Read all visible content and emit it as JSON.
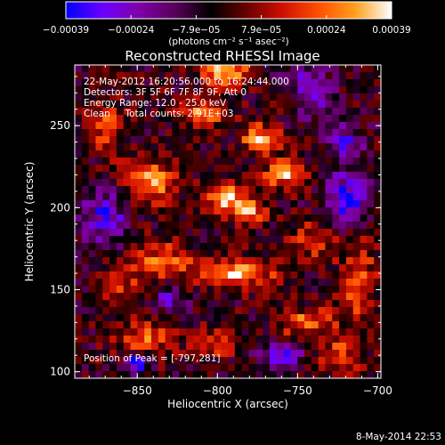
{
  "chart_data": {
    "type": "heatmap",
    "title": "Reconstructed RHESSI Image",
    "xlabel": "Heliocentric X (arcsec)",
    "ylabel": "Heliocentric Y (arcsec)",
    "xlim": [
      -889,
      -698
    ],
    "ylim": [
      96,
      287
    ],
    "x_ticks": [
      -850,
      -800,
      -750,
      -700
    ],
    "x_tick_labels": [
      "−850",
      "−800",
      "−750",
      "−700"
    ],
    "y_ticks": [
      100,
      150,
      200,
      250
    ],
    "y_tick_labels": [
      "100",
      "150",
      "200",
      "250"
    ],
    "colorbar": {
      "min": -0.00039,
      "max": 0.00039,
      "tick_labels": [
        "−0.00039",
        "−0.00024",
        "−7.9e−05",
        "7.9e−05",
        "0.00024",
        "0.00039"
      ],
      "unit_label": "(photons cm⁻² s⁻¹ asec⁻²)",
      "colors": [
        "#0000ff",
        "#6a00ff",
        "#8000aa",
        "#5a005a",
        "#000000",
        "#6a0000",
        "#d01000",
        "#ff5000",
        "#ffa020",
        "#ffffff"
      ]
    },
    "peak": [
      -797,
      281
    ],
    "sources": [
      {
        "x": -795,
        "y": 283,
        "sx": 10,
        "sy": 6,
        "a": 1.0
      },
      {
        "x": -773,
        "y": 242,
        "sx": 8,
        "sy": 6,
        "a": 0.95
      },
      {
        "x": -758,
        "y": 220,
        "sx": 9,
        "sy": 6,
        "a": 0.85
      },
      {
        "x": -808,
        "y": 258,
        "sx": 10,
        "sy": 6,
        "a": 0.75
      },
      {
        "x": -842,
        "y": 216,
        "sx": 12,
        "sy": 10,
        "a": 0.8
      },
      {
        "x": -795,
        "y": 206,
        "sx": 9,
        "sy": 6,
        "a": 0.85
      },
      {
        "x": -780,
        "y": 198,
        "sx": 8,
        "sy": 6,
        "a": 0.7
      },
      {
        "x": -790,
        "y": 160,
        "sx": 18,
        "sy": 6,
        "a": 0.9
      },
      {
        "x": -835,
        "y": 168,
        "sx": 14,
        "sy": 8,
        "a": 0.6
      },
      {
        "x": -845,
        "y": 120,
        "sx": 12,
        "sy": 8,
        "a": 0.6
      },
      {
        "x": -800,
        "y": 118,
        "sx": 10,
        "sy": 6,
        "a": 0.55
      },
      {
        "x": -745,
        "y": 130,
        "sx": 12,
        "sy": 6,
        "a": 0.7
      },
      {
        "x": -712,
        "y": 155,
        "sx": 8,
        "sy": 18,
        "a": 0.6
      },
      {
        "x": -725,
        "y": 110,
        "sx": 10,
        "sy": 8,
        "a": 0.55
      },
      {
        "x": -870,
        "y": 250,
        "sx": 8,
        "sy": 12,
        "a": 0.5
      },
      {
        "x": -860,
        "y": 150,
        "sx": 10,
        "sy": 10,
        "a": 0.45
      },
      {
        "x": -740,
        "y": 180,
        "sx": 10,
        "sy": 8,
        "a": 0.5
      },
      {
        "x": -755,
        "y": 265,
        "sx": 8,
        "sy": 6,
        "a": 0.45
      }
    ],
    "negative_sources": [
      {
        "x": -850,
        "y": 105,
        "sx": 5,
        "sy": 4,
        "a": 1.0
      },
      {
        "x": -718,
        "y": 205,
        "sx": 10,
        "sy": 12,
        "a": 0.8
      },
      {
        "x": -745,
        "y": 270,
        "sx": 10,
        "sy": 10,
        "a": 0.75
      },
      {
        "x": -870,
        "y": 195,
        "sx": 10,
        "sy": 12,
        "a": 0.7
      },
      {
        "x": -760,
        "y": 110,
        "sx": 10,
        "sy": 6,
        "a": 0.6
      },
      {
        "x": -720,
        "y": 240,
        "sx": 8,
        "sy": 8,
        "a": 0.6
      },
      {
        "x": -830,
        "y": 145,
        "sx": 8,
        "sy": 6,
        "a": 0.5
      }
    ]
  },
  "annotations": {
    "time_range": "22-May-2012 16:20:56.000 to 16:24:44.000",
    "detectors": "Detectors: 3F 5F 6F 7F 8F 9F, Att 0",
    "energy_range": "Energy Range: 12.0 - 25.0 keV",
    "clean_total": "Clean     Total counts: 2.91E+03",
    "peak_position": "Position of Peak = [-797,281]"
  },
  "footer": {
    "date": "8-May-2014 22:53"
  }
}
